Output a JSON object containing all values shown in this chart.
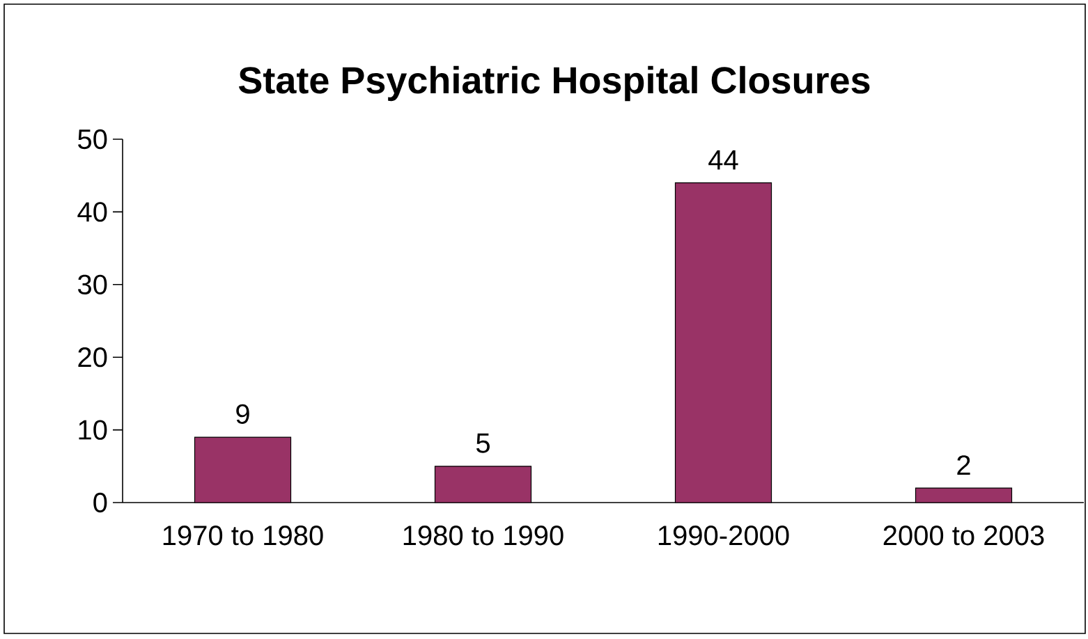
{
  "chart_data": {
    "type": "bar",
    "title": "State Psychiatric Hospital Closures",
    "categories": [
      "1970 to 1980",
      "1980 to 1990",
      "1990-2000",
      "2000 to 2003"
    ],
    "values": [
      9,
      5,
      44,
      2
    ],
    "color": "#993366",
    "ylim": [
      0,
      50
    ],
    "yticks": [
      0,
      10,
      20,
      30,
      40,
      50
    ],
    "data_labels": true
  }
}
